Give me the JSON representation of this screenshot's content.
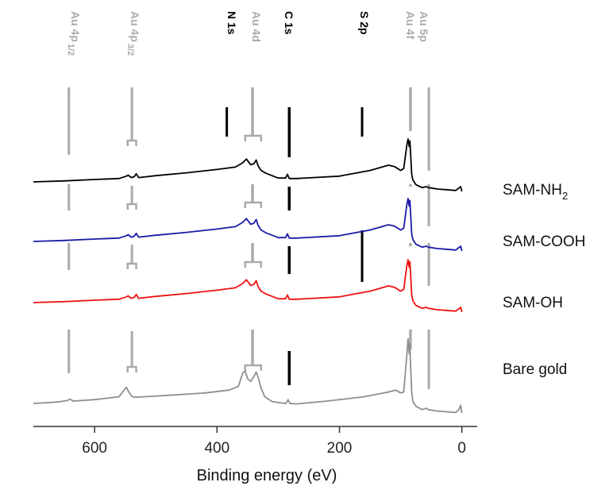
{
  "chart_data": {
    "type": "line",
    "title": "",
    "xlabel": "Binding energy (eV)",
    "ylabel": "",
    "xlim": [
      700,
      -25
    ],
    "x_reversed": true,
    "xticks": [
      600,
      400,
      200,
      0
    ],
    "tick_labels": [
      "600",
      "400",
      "200",
      "0"
    ],
    "colors": {
      "gold": "#8f8f8f",
      "peak_marker": "#aaaaaa",
      "element": "#000000"
    },
    "series": [
      {
        "name": "SAM-NH2",
        "label_main": "SAM-NH",
        "label_sub": "2",
        "color": "#000000",
        "x": [
          700,
          650,
          600,
          560,
          548,
          545,
          540,
          535,
          532,
          528,
          500,
          450,
          400,
          370,
          358,
          352,
          345,
          340,
          336,
          333,
          328,
          320,
          300,
          288,
          285,
          282,
          270,
          200,
          150,
          120,
          110,
          100,
          95,
          90,
          88,
          86,
          85,
          84,
          82,
          80,
          75,
          65,
          58,
          55,
          40,
          20,
          10,
          5,
          2,
          0
        ],
        "y": [
          10,
          11,
          12.5,
          13.5,
          16,
          17,
          14.5,
          15.5,
          18.5,
          14.5,
          16.5,
          19.5,
          23,
          25.5,
          30,
          34,
          28,
          29,
          33,
          27,
          22,
          19,
          14,
          14,
          18,
          13.5,
          13.5,
          16,
          22,
          27.5,
          26,
          22,
          24,
          48,
          55,
          47,
          53,
          42,
          18,
          12,
          7,
          4,
          5,
          4,
          2.5,
          1.5,
          1,
          3.5,
          5,
          0
        ]
      },
      {
        "name": "SAM-COOH",
        "label_main": "SAM-COOH",
        "color": "#1a1aa8",
        "x": [
          700,
          650,
          600,
          560,
          548,
          545,
          540,
          535,
          532,
          528,
          500,
          450,
          400,
          370,
          358,
          352,
          345,
          340,
          336,
          333,
          328,
          320,
          300,
          288,
          285,
          282,
          270,
          200,
          150,
          120,
          110,
          100,
          95,
          90,
          88,
          86,
          85,
          84,
          82,
          80,
          75,
          65,
          58,
          55,
          40,
          20,
          10,
          5,
          2,
          0
        ],
        "y": [
          10,
          11,
          12.5,
          13.5,
          16,
          17,
          14.5,
          15.5,
          18.5,
          14.5,
          16.5,
          19.5,
          23,
          25.5,
          30,
          34,
          28,
          29,
          33,
          27,
          22,
          19,
          14,
          14,
          18,
          13.5,
          13.5,
          16,
          22,
          27.5,
          26,
          22,
          24,
          48,
          55,
          47,
          53,
          42,
          18,
          12,
          7,
          4,
          5,
          4,
          2.5,
          1.5,
          1,
          3.5,
          5,
          0
        ]
      },
      {
        "name": "SAM-OH",
        "label_main": "SAM-OH",
        "color": "#ee1111",
        "x": [
          700,
          650,
          600,
          560,
          548,
          545,
          540,
          535,
          532,
          528,
          500,
          450,
          400,
          370,
          358,
          352,
          345,
          340,
          336,
          333,
          328,
          320,
          300,
          288,
          285,
          282,
          270,
          200,
          150,
          120,
          110,
          100,
          95,
          90,
          88,
          86,
          85,
          84,
          82,
          80,
          75,
          65,
          58,
          55,
          40,
          20,
          10,
          5,
          2,
          0
        ],
        "y": [
          10,
          11,
          12.5,
          13.5,
          16,
          17,
          14.5,
          15.5,
          18.5,
          14.5,
          16.5,
          19.5,
          23,
          25.5,
          30,
          34,
          28,
          29,
          33,
          27,
          22,
          19,
          14,
          14,
          18,
          13.5,
          13.5,
          16,
          22,
          27.5,
          26,
          22,
          24,
          48,
          55,
          47,
          53,
          42,
          18,
          12,
          7,
          4,
          5,
          4,
          2.5,
          1.5,
          1,
          3.5,
          5,
          0
        ]
      },
      {
        "name": "Bare gold",
        "label_main": "Bare gold",
        "color": "#8f8f8f",
        "x": [
          700,
          660,
          645,
          640,
          635,
          600,
          560,
          552,
          548,
          545,
          540,
          535,
          520,
          480,
          420,
          380,
          365,
          358,
          354,
          350,
          345,
          340,
          336,
          332,
          328,
          322,
          310,
          295,
          287,
          284,
          281,
          270,
          220,
          160,
          120,
          108,
          100,
          95,
          90,
          88,
          86,
          85,
          84,
          82,
          80,
          75,
          65,
          58,
          55,
          40,
          20,
          10,
          5,
          2,
          0
        ],
        "y": [
          10,
          11.5,
          13,
          14.5,
          12.5,
          14,
          17,
          24,
          27,
          23,
          18,
          16.5,
          17,
          18.5,
          21,
          24,
          28,
          42,
          44,
          36,
          33,
          38,
          43,
          36,
          26,
          17,
          12,
          10.5,
          10,
          14,
          10,
          9.5,
          12.5,
          17,
          22,
          24,
          21,
          22,
          60,
          78,
          62,
          73,
          52,
          22,
          12,
          7,
          3.5,
          5,
          3.5,
          2,
          1,
          0.5,
          3.5,
          8,
          0
        ]
      }
    ],
    "peak_labels": [
      {
        "label_main": "Au 4p",
        "label_sub": "1/2",
        "x": 642,
        "color": "#aaaaaa"
      },
      {
        "label_main": "Au 4p",
        "label_sub": "3/2",
        "x": 546,
        "color": "#aaaaaa"
      },
      {
        "label_main": "N 1s",
        "x": 399,
        "color": "#000000"
      },
      {
        "label_main": "Au 4d",
        "x": 353,
        "color": "#aaaaaa"
      },
      {
        "label_main": "C 1s",
        "x": 285,
        "color": "#000000"
      },
      {
        "label_main": "S 2p",
        "x": 163,
        "color": "#000000"
      },
      {
        "label_main": "Au 4f",
        "x": 84,
        "color": "#aaaaaa"
      },
      {
        "label_main": "Au 5p",
        "x": 57,
        "color": "#aaaaaa"
      }
    ]
  }
}
